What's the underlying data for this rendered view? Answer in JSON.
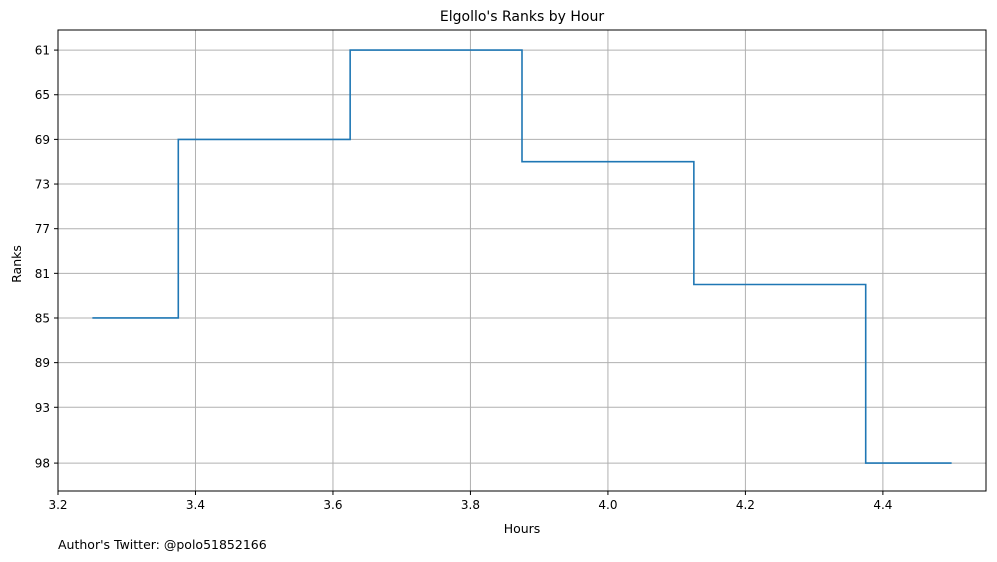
{
  "chart_data": {
    "type": "line",
    "step": "mid",
    "title": "Elgollo's Ranks by Hour",
    "xlabel": "Hours",
    "ylabel": "Ranks",
    "xlim": [
      3.2,
      4.55
    ],
    "ylim": [
      100.5,
      59.2
    ],
    "y_inverted": true,
    "grid": true,
    "x_ticks": [
      3.2,
      3.4,
      3.6,
      3.8,
      4.0,
      4.2,
      4.4
    ],
    "x_tick_labels": [
      "3.2",
      "3.4",
      "3.6",
      "3.8",
      "4.0",
      "4.2",
      "4.4"
    ],
    "y_ticks": [
      61,
      65,
      69,
      73,
      77,
      81,
      85,
      89,
      93,
      98
    ],
    "y_tick_labels": [
      "61",
      "65",
      "69",
      "73",
      "77",
      "81",
      "85",
      "89",
      "93",
      "98"
    ],
    "x": [
      3.25,
      3.5,
      3.75,
      4.0,
      4.25,
      4.5
    ],
    "values": [
      85,
      69,
      61,
      71,
      82,
      98
    ],
    "colors": {
      "line": "#1f77b4",
      "grid": "#b0b0b0",
      "axis": "#000000"
    }
  },
  "footer": {
    "author_note": "Author's Twitter: @polo51852166"
  }
}
